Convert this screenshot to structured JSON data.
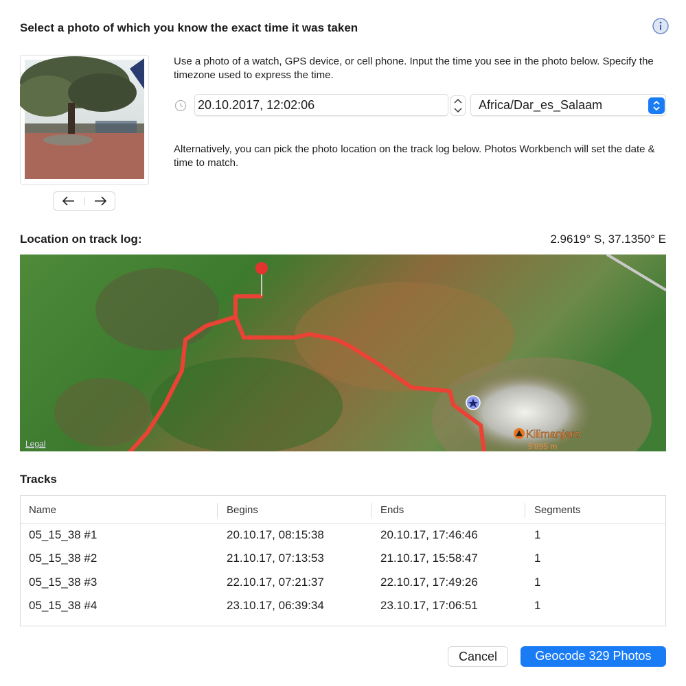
{
  "dialog": {
    "title": "Select a photo of which you know the exact time it was taken",
    "description": "Use a photo of a watch, GPS device, or cell phone. Input the time you see in the photo below. Specify the timezone used to express the time.",
    "date_time": "20.10.2017, 12:02:06",
    "timezone": "Africa/Dar_es_Salaam",
    "alternative": "Alternatively, you can pick the photo location on the track log below. Photos Workbench will set the date & time to match."
  },
  "location": {
    "heading": "Location on track log:",
    "coordinates": "2.9619° S, 37.1350° E"
  },
  "map": {
    "legal": "Legal",
    "peak_name": "Kilimanjaro",
    "peak_elevation": "5'895 m"
  },
  "tracks": {
    "heading": "Tracks",
    "columns": [
      "Name",
      "Begins",
      "Ends",
      "Segments"
    ],
    "rows": [
      [
        "05_15_38 #1",
        "20.10.17, 08:15:38",
        "20.10.17, 17:46:46",
        "1"
      ],
      [
        "05_15_38 #2",
        "21.10.17, 07:13:53",
        "21.10.17, 15:58:47",
        "1"
      ],
      [
        "05_15_38 #3",
        "22.10.17, 07:21:37",
        "22.10.17, 17:49:26",
        "1"
      ],
      [
        "05_15_38 #4",
        "23.10.17, 06:39:34",
        "23.10.17, 17:06:51",
        "1"
      ]
    ]
  },
  "buttons": {
    "cancel": "Cancel",
    "confirm": "Geocode 329 Photos"
  }
}
